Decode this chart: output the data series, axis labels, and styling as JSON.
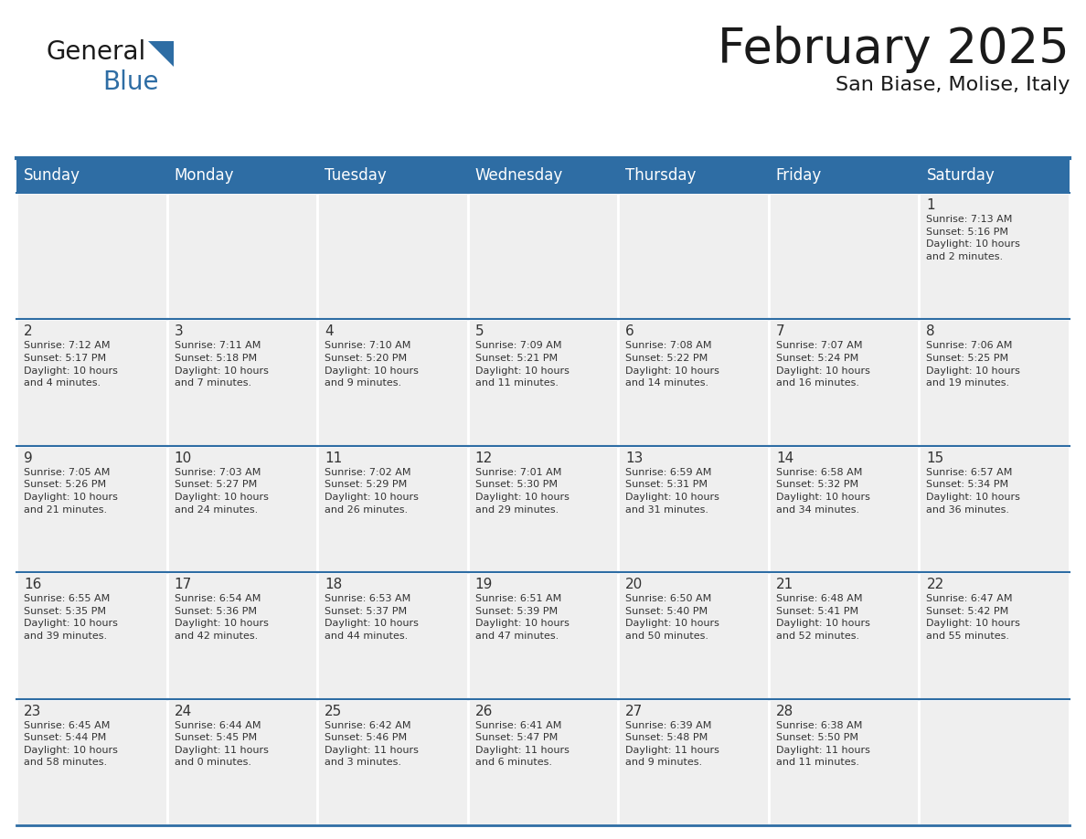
{
  "title": "February 2025",
  "subtitle": "San Biase, Molise, Italy",
  "header_color": "#2E6DA4",
  "header_text_color": "#FFFFFF",
  "cell_bg_color": "#EFEFEF",
  "cell_empty_bg": "#FFFFFF",
  "border_color": "#2E6DA4",
  "text_color": "#333333",
  "days_of_week": [
    "Sunday",
    "Monday",
    "Tuesday",
    "Wednesday",
    "Thursday",
    "Friday",
    "Saturday"
  ],
  "weeks": [
    [
      {
        "day": null,
        "text": ""
      },
      {
        "day": null,
        "text": ""
      },
      {
        "day": null,
        "text": ""
      },
      {
        "day": null,
        "text": ""
      },
      {
        "day": null,
        "text": ""
      },
      {
        "day": null,
        "text": ""
      },
      {
        "day": 1,
        "text": "Sunrise: 7:13 AM\nSunset: 5:16 PM\nDaylight: 10 hours\nand 2 minutes."
      }
    ],
    [
      {
        "day": 2,
        "text": "Sunrise: 7:12 AM\nSunset: 5:17 PM\nDaylight: 10 hours\nand 4 minutes."
      },
      {
        "day": 3,
        "text": "Sunrise: 7:11 AM\nSunset: 5:18 PM\nDaylight: 10 hours\nand 7 minutes."
      },
      {
        "day": 4,
        "text": "Sunrise: 7:10 AM\nSunset: 5:20 PM\nDaylight: 10 hours\nand 9 minutes."
      },
      {
        "day": 5,
        "text": "Sunrise: 7:09 AM\nSunset: 5:21 PM\nDaylight: 10 hours\nand 11 minutes."
      },
      {
        "day": 6,
        "text": "Sunrise: 7:08 AM\nSunset: 5:22 PM\nDaylight: 10 hours\nand 14 minutes."
      },
      {
        "day": 7,
        "text": "Sunrise: 7:07 AM\nSunset: 5:24 PM\nDaylight: 10 hours\nand 16 minutes."
      },
      {
        "day": 8,
        "text": "Sunrise: 7:06 AM\nSunset: 5:25 PM\nDaylight: 10 hours\nand 19 minutes."
      }
    ],
    [
      {
        "day": 9,
        "text": "Sunrise: 7:05 AM\nSunset: 5:26 PM\nDaylight: 10 hours\nand 21 minutes."
      },
      {
        "day": 10,
        "text": "Sunrise: 7:03 AM\nSunset: 5:27 PM\nDaylight: 10 hours\nand 24 minutes."
      },
      {
        "day": 11,
        "text": "Sunrise: 7:02 AM\nSunset: 5:29 PM\nDaylight: 10 hours\nand 26 minutes."
      },
      {
        "day": 12,
        "text": "Sunrise: 7:01 AM\nSunset: 5:30 PM\nDaylight: 10 hours\nand 29 minutes."
      },
      {
        "day": 13,
        "text": "Sunrise: 6:59 AM\nSunset: 5:31 PM\nDaylight: 10 hours\nand 31 minutes."
      },
      {
        "day": 14,
        "text": "Sunrise: 6:58 AM\nSunset: 5:32 PM\nDaylight: 10 hours\nand 34 minutes."
      },
      {
        "day": 15,
        "text": "Sunrise: 6:57 AM\nSunset: 5:34 PM\nDaylight: 10 hours\nand 36 minutes."
      }
    ],
    [
      {
        "day": 16,
        "text": "Sunrise: 6:55 AM\nSunset: 5:35 PM\nDaylight: 10 hours\nand 39 minutes."
      },
      {
        "day": 17,
        "text": "Sunrise: 6:54 AM\nSunset: 5:36 PM\nDaylight: 10 hours\nand 42 minutes."
      },
      {
        "day": 18,
        "text": "Sunrise: 6:53 AM\nSunset: 5:37 PM\nDaylight: 10 hours\nand 44 minutes."
      },
      {
        "day": 19,
        "text": "Sunrise: 6:51 AM\nSunset: 5:39 PM\nDaylight: 10 hours\nand 47 minutes."
      },
      {
        "day": 20,
        "text": "Sunrise: 6:50 AM\nSunset: 5:40 PM\nDaylight: 10 hours\nand 50 minutes."
      },
      {
        "day": 21,
        "text": "Sunrise: 6:48 AM\nSunset: 5:41 PM\nDaylight: 10 hours\nand 52 minutes."
      },
      {
        "day": 22,
        "text": "Sunrise: 6:47 AM\nSunset: 5:42 PM\nDaylight: 10 hours\nand 55 minutes."
      }
    ],
    [
      {
        "day": 23,
        "text": "Sunrise: 6:45 AM\nSunset: 5:44 PM\nDaylight: 10 hours\nand 58 minutes."
      },
      {
        "day": 24,
        "text": "Sunrise: 6:44 AM\nSunset: 5:45 PM\nDaylight: 11 hours\nand 0 minutes."
      },
      {
        "day": 25,
        "text": "Sunrise: 6:42 AM\nSunset: 5:46 PM\nDaylight: 11 hours\nand 3 minutes."
      },
      {
        "day": 26,
        "text": "Sunrise: 6:41 AM\nSunset: 5:47 PM\nDaylight: 11 hours\nand 6 minutes."
      },
      {
        "day": 27,
        "text": "Sunrise: 6:39 AM\nSunset: 5:48 PM\nDaylight: 11 hours\nand 9 minutes."
      },
      {
        "day": 28,
        "text": "Sunrise: 6:38 AM\nSunset: 5:50 PM\nDaylight: 11 hours\nand 11 minutes."
      },
      {
        "day": null,
        "text": ""
      }
    ]
  ],
  "logo_text_general": "General",
  "logo_text_blue": "Blue",
  "logo_color_general": "#1a1a1a",
  "logo_color_blue": "#2E6DA4",
  "logo_triangle_color": "#2E6DA4",
  "title_fontsize": 38,
  "subtitle_fontsize": 16,
  "header_fontsize": 12,
  "day_num_fontsize": 11,
  "cell_text_fontsize": 8
}
